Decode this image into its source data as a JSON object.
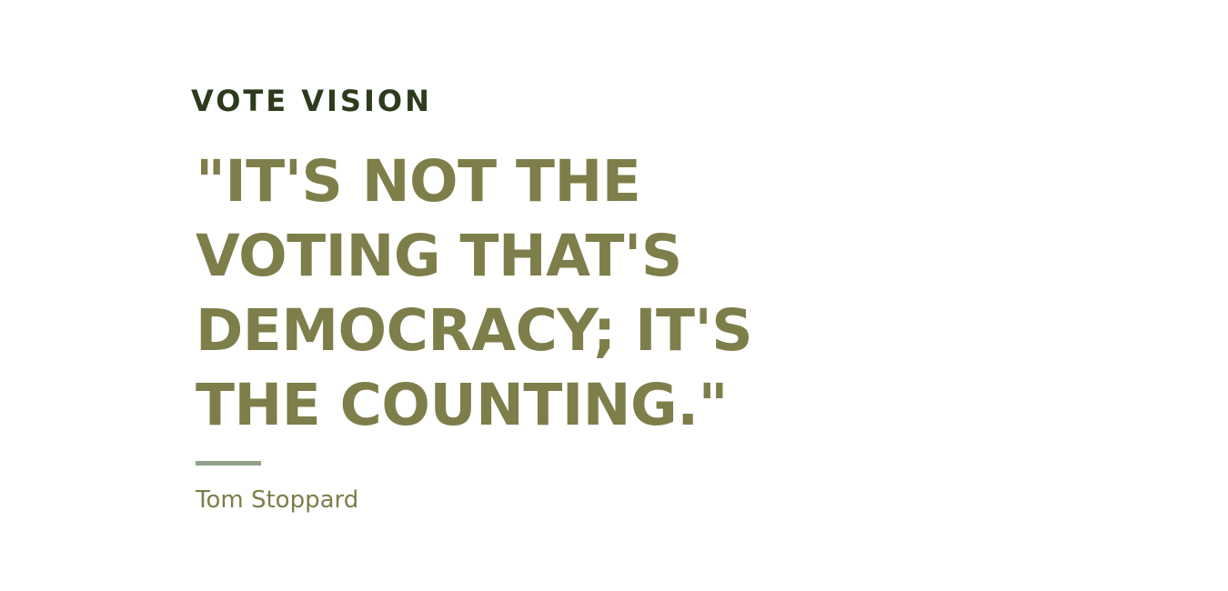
{
  "brand": {
    "name": "VOTE VISION"
  },
  "quote": {
    "lines": [
      "\"IT'S NOT THE",
      "VOTING THAT'S",
      "DEMOCRACY; IT'S",
      "THE COUNTING.\""
    ],
    "author": "Tom Stoppard"
  },
  "colors": {
    "brand_text": "#2e3a1c",
    "quote_text": "#7d7e4a",
    "divider": "#8fa28a",
    "background": "#ffffff"
  }
}
